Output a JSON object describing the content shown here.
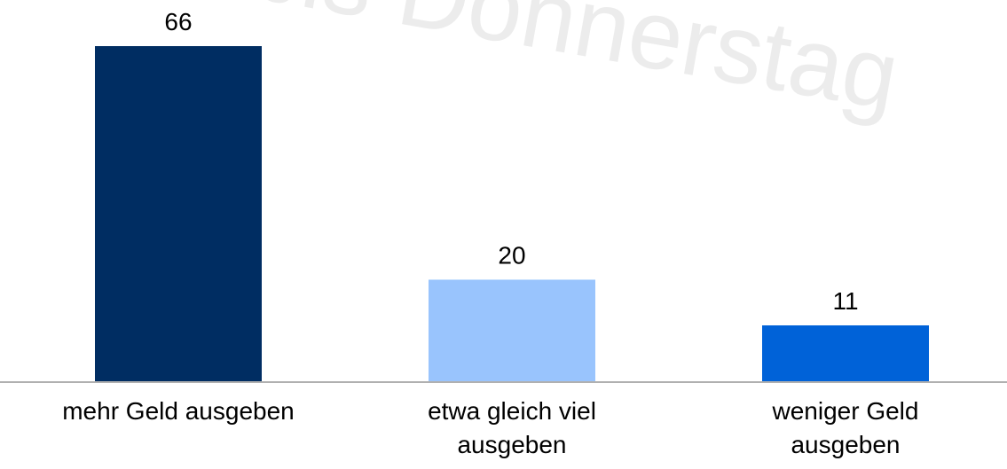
{
  "chart_data": {
    "type": "bar",
    "watermark": "bis Donnerstag",
    "categories": [
      "mehr Geld ausgeben",
      "etwa gleich viel\nausgeben",
      "weniger Geld\nausgeben"
    ],
    "values": [
      66,
      20,
      11
    ],
    "colors": [
      "#002d62",
      "#99c4fd",
      "#0062d8"
    ]
  }
}
